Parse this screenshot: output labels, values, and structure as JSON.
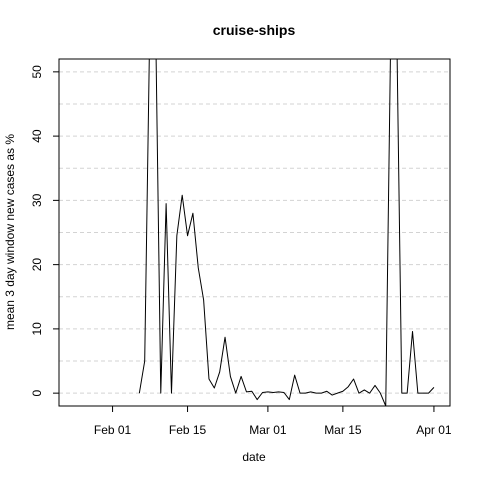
{
  "chart_data": {
    "type": "line",
    "title": "cruise-ships",
    "xlabel": "date",
    "ylabel": "mean  3  day window new cases as %",
    "x_axis": "date",
    "xlim": [
      "2020-01-22",
      "2020-04-04"
    ],
    "ylim": [
      -2,
      52
    ],
    "x_ticks": [
      {
        "date": "2020-02-01",
        "label": "Feb 01"
      },
      {
        "date": "2020-02-15",
        "label": "Feb 15"
      },
      {
        "date": "2020-03-01",
        "label": "Mar 01"
      },
      {
        "date": "2020-03-15",
        "label": "Mar 15"
      },
      {
        "date": "2020-04-01",
        "label": "Apr 01"
      }
    ],
    "y_ticks": [
      0,
      10,
      20,
      30,
      40,
      50
    ],
    "grid": {
      "horizontal": true,
      "vertical": false,
      "style": "dashed"
    },
    "line_color": "#000000",
    "series": [
      {
        "points": [
          [
            "2020-02-06",
            0
          ],
          [
            "2020-02-07",
            5
          ],
          [
            "2020-02-08",
            60
          ],
          [
            "2020-02-09",
            60
          ],
          [
            "2020-02-10",
            0
          ],
          [
            "2020-02-11",
            29.5
          ],
          [
            "2020-02-12",
            0
          ],
          [
            "2020-02-13",
            24.5
          ],
          [
            "2020-02-14",
            30.8
          ],
          [
            "2020-02-15",
            24.5
          ],
          [
            "2020-02-16",
            28
          ],
          [
            "2020-02-17",
            19.5
          ],
          [
            "2020-02-18",
            14.5
          ],
          [
            "2020-02-19",
            2.2
          ],
          [
            "2020-02-20",
            0.8
          ],
          [
            "2020-02-21",
            3.3
          ],
          [
            "2020-02-22",
            8.7
          ],
          [
            "2020-02-23",
            2.6
          ],
          [
            "2020-02-24",
            0
          ],
          [
            "2020-02-25",
            2.6
          ],
          [
            "2020-02-26",
            0.2
          ],
          [
            "2020-02-27",
            0.3
          ],
          [
            "2020-02-28",
            -1
          ],
          [
            "2020-02-29",
            0.1
          ],
          [
            "2020-03-01",
            0.2
          ],
          [
            "2020-03-02",
            0.1
          ],
          [
            "2020-03-03",
            0.2
          ],
          [
            "2020-03-04",
            0.1
          ],
          [
            "2020-03-05",
            -1
          ],
          [
            "2020-03-06",
            2.8
          ],
          [
            "2020-03-07",
            0
          ],
          [
            "2020-03-08",
            0
          ],
          [
            "2020-03-09",
            0.2
          ],
          [
            "2020-03-10",
            0
          ],
          [
            "2020-03-11",
            0
          ],
          [
            "2020-03-12",
            0.3
          ],
          [
            "2020-03-13",
            -0.3
          ],
          [
            "2020-03-14",
            0
          ],
          [
            "2020-03-15",
            0.3
          ],
          [
            "2020-03-16",
            1
          ],
          [
            "2020-03-17",
            2.2
          ],
          [
            "2020-03-18",
            0
          ],
          [
            "2020-03-19",
            0.5
          ],
          [
            "2020-03-20",
            0
          ],
          [
            "2020-03-21",
            1.2
          ],
          [
            "2020-03-22",
            0
          ],
          [
            "2020-03-23",
            -2
          ],
          [
            "2020-03-24",
            60
          ],
          [
            "2020-03-25",
            60
          ],
          [
            "2020-03-26",
            0
          ],
          [
            "2020-03-27",
            0
          ],
          [
            "2020-03-28",
            9.6
          ],
          [
            "2020-03-29",
            0
          ],
          [
            "2020-03-30",
            0
          ],
          [
            "2020-03-31",
            0
          ],
          [
            "2020-04-01",
            0.9
          ]
        ]
      }
    ]
  }
}
